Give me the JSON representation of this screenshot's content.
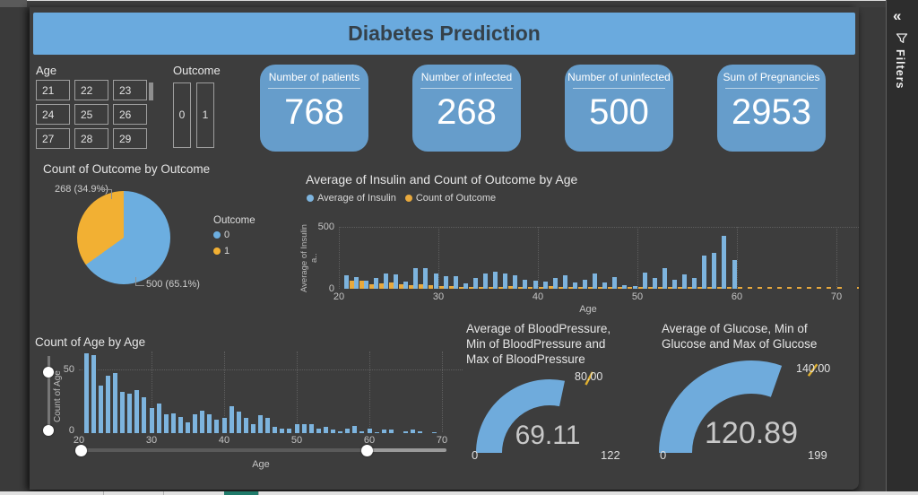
{
  "chrome": {
    "filters_panel": {
      "collapse_icon": "«",
      "label": "Filters"
    }
  },
  "report": {
    "title": "Diabetes Prediction",
    "slicers": {
      "age": {
        "label": "Age",
        "values": [
          "21",
          "22",
          "23",
          "24",
          "25",
          "26",
          "27",
          "28",
          "29"
        ]
      },
      "outcome": {
        "label": "Outcome",
        "values": [
          "0",
          "1"
        ]
      }
    },
    "cards": [
      {
        "label": "Number of patients",
        "value": "768"
      },
      {
        "label": "Number of infected",
        "value": "268"
      },
      {
        "label": "Number of uninfected",
        "value": "500"
      },
      {
        "label": "Sum of Pregnancies",
        "value": "2953"
      }
    ]
  },
  "colors": {
    "titlebar_blue": "#6aaade",
    "card_blue": "#669dcb",
    "pie_blue": "#6caee0",
    "pie_yellow": "#f2b033",
    "bar_blue": "#7db4de",
    "count_yellow": "#e8a93d",
    "gauge_blue": "#6fabdc",
    "gauge_target_yellow": "#e0b02f",
    "canvas_bg": "#3d3d3d"
  },
  "chart_data": [
    {
      "id": "outcome-pie",
      "type": "pie",
      "title": "Count of Outcome by Outcome",
      "legend_title": "Outcome",
      "legend_position": "right",
      "slices": [
        {
          "label": "0",
          "value": 500,
          "percent": 65.1,
          "callout": "500 (65.1%)",
          "color": "#6caee0"
        },
        {
          "label": "1",
          "value": 268,
          "percent": 34.9,
          "callout": "268 (34.9%)",
          "color": "#f2b033"
        }
      ]
    },
    {
      "id": "insulin-by-age",
      "type": "bar",
      "title": "Average of Insulin and Count of Outcome by Age",
      "xlabel": "Age",
      "ylabel": "Average of Insulin a..",
      "ylim": [
        0,
        500
      ],
      "yticks": [
        "500",
        "0"
      ],
      "xticks": [
        20,
        30,
        40,
        50,
        60,
        70
      ],
      "grid": "dotted",
      "legend_position": "top-left",
      "ages": [
        21,
        22,
        23,
        24,
        25,
        26,
        27,
        28,
        29,
        30,
        31,
        32,
        33,
        34,
        35,
        36,
        37,
        38,
        39,
        40,
        41,
        42,
        43,
        44,
        45,
        46,
        47,
        48,
        49,
        50,
        51,
        52,
        53,
        54,
        55,
        56,
        57,
        58,
        59,
        60,
        61,
        62,
        63,
        64,
        65,
        66,
        67,
        68,
        69,
        70,
        71,
        72
      ],
      "series": [
        {
          "name": "Average of Insulin",
          "color": "#7db4de",
          "values": [
            110,
            95,
            65,
            90,
            125,
            115,
            55,
            165,
            170,
            120,
            105,
            100,
            45,
            85,
            125,
            135,
            125,
            110,
            75,
            65,
            55,
            85,
            110,
            50,
            70,
            125,
            50,
            95,
            30,
            25,
            130,
            85,
            170,
            70,
            115,
            90,
            270,
            290,
            430,
            235,
            0,
            0,
            0,
            0,
            0,
            0,
            0,
            0,
            0,
            0,
            0,
            0
          ]
        },
        {
          "name": "Count of Outcome",
          "color": "#e8a93d",
          "values": [
            63,
            62,
            38,
            46,
            48,
            33,
            32,
            35,
            29,
            21,
            24,
            16,
            17,
            14,
            10,
            16,
            19,
            16,
            12,
            13,
            22,
            18,
            13,
            8,
            15,
            13,
            6,
            5,
            5,
            8,
            8,
            8,
            5,
            6,
            4,
            3,
            5,
            7,
            3,
            5,
            2,
            4,
            4,
            1,
            3,
            4,
            3,
            1,
            2,
            1,
            0,
            1
          ]
        }
      ]
    },
    {
      "id": "age-histogram",
      "type": "bar",
      "title": "Count of Age by Age",
      "xlabel": "Age",
      "ylabel": "Count of Age",
      "ylim": [
        0,
        50
      ],
      "yticks": [
        "50",
        "0"
      ],
      "xticks": [
        20,
        30,
        40,
        50,
        60,
        70
      ],
      "bar_color": "#7db4de",
      "ages": [
        21,
        22,
        23,
        24,
        25,
        26,
        27,
        28,
        29,
        30,
        31,
        32,
        33,
        34,
        35,
        36,
        37,
        38,
        39,
        40,
        41,
        42,
        43,
        44,
        45,
        46,
        47,
        48,
        49,
        50,
        51,
        52,
        53,
        54,
        55,
        56,
        57,
        58,
        59,
        60,
        61,
        62,
        63,
        64,
        65,
        66,
        67,
        68,
        69,
        70,
        71,
        72
      ],
      "values": [
        63,
        62,
        38,
        46,
        48,
        33,
        32,
        35,
        29,
        21,
        24,
        16,
        17,
        14,
        10,
        16,
        19,
        16,
        12,
        13,
        22,
        18,
        13,
        8,
        15,
        13,
        6,
        5,
        5,
        8,
        8,
        8,
        5,
        6,
        4,
        3,
        5,
        7,
        3,
        5,
        2,
        4,
        4,
        1,
        3,
        4,
        3,
        1,
        2,
        1,
        0,
        1
      ],
      "x_zoom_slider_range": [
        20,
        60
      ],
      "y_zoom_slider_range": [
        0,
        48
      ]
    },
    {
      "id": "bloodpressure-gauge",
      "type": "gauge",
      "title": "Average of BloodPressure, Min of BloodPressure and Max of BloodPressure",
      "title_lines": [
        "Average of BloodPressure,",
        "Min of BloodPressure and",
        "Max of BloodPressure"
      ],
      "value": 69.11,
      "display_value": "69.11",
      "min": 0,
      "max": 122,
      "target": 80,
      "target_label": "80.00"
    },
    {
      "id": "glucose-gauge",
      "type": "gauge",
      "title": "Average of Glucose, Min of Glucose and Max of Glucose",
      "title_lines": [
        "Average of Glucose, Min of",
        "Glucose and Max of Glucose"
      ],
      "value": 120.89,
      "display_value": "120.89",
      "min": 0,
      "max": 199,
      "target": 140,
      "target_label": "140.00"
    }
  ]
}
